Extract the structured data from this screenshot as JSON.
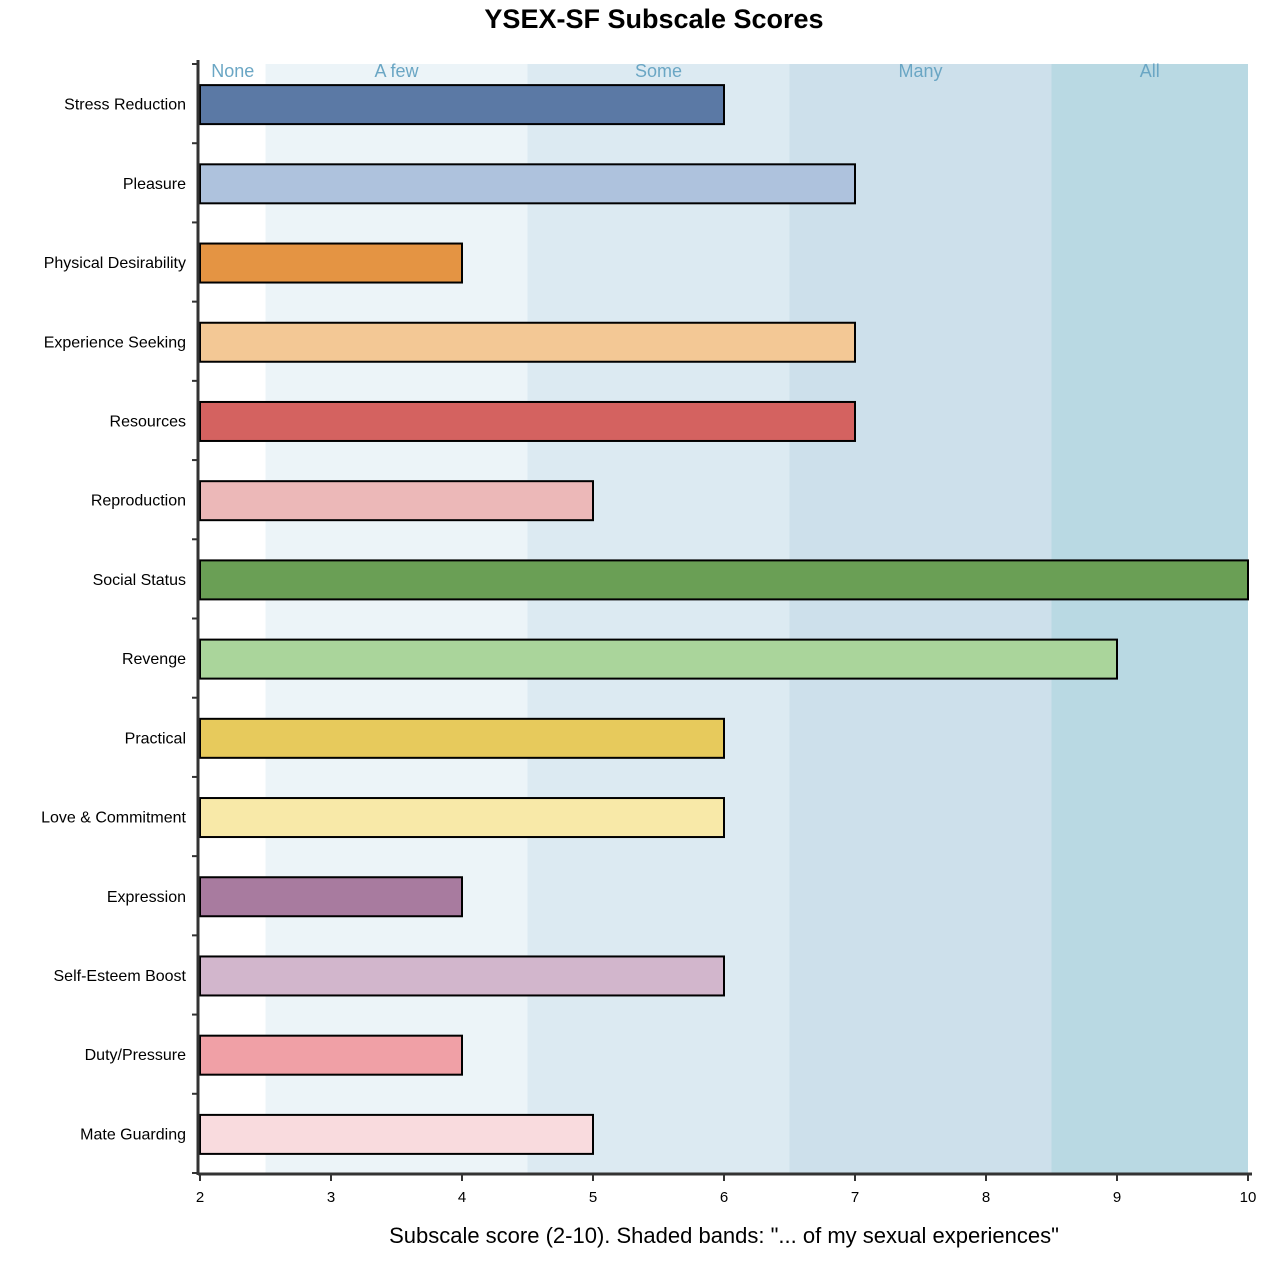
{
  "chart_data": {
    "type": "bar",
    "orientation": "horizontal",
    "title": "YSEX-SF Subscale Scores",
    "xlabel": "Subscale score (2-10). Shaded bands: \"... of my sexual experiences\"",
    "ylabel": "",
    "xlim": [
      2,
      10
    ],
    "xticks": [
      2,
      3,
      4,
      5,
      6,
      7,
      8,
      9,
      10
    ],
    "grid": false,
    "bands": [
      {
        "label": "None",
        "from": 2.0,
        "to": 2.5,
        "color": "#ffffff"
      },
      {
        "label": "A few",
        "from": 2.5,
        "to": 4.5,
        "color": "#ecf4f8"
      },
      {
        "label": "Some",
        "from": 4.5,
        "to": 6.5,
        "color": "#dceaf2"
      },
      {
        "label": "Many",
        "from": 6.5,
        "to": 8.5,
        "color": "#cde0eb"
      },
      {
        "label": "All",
        "from": 8.5,
        "to": 10.0,
        "color": "#b9d9e3"
      }
    ],
    "categories": [
      "Stress Reduction",
      "Pleasure",
      "Physical Desirability",
      "Experience Seeking",
      "Resources",
      "Reproduction",
      "Social Status",
      "Revenge",
      "Practical",
      "Love & Commitment",
      "Expression",
      "Self-Esteem Boost",
      "Duty/Pressure",
      "Mate Guarding"
    ],
    "values": [
      6,
      7,
      4,
      7,
      7,
      5,
      10,
      9,
      6,
      6,
      4,
      6,
      4,
      5
    ],
    "colors": [
      "#5b79a5",
      "#aec2dd",
      "#e49443",
      "#f3c895",
      "#d46260",
      "#ecb8b8",
      "#6a9f55",
      "#aad59b",
      "#e7ca5c",
      "#f8e9a8",
      "#a87b9f",
      "#d2b6cc",
      "#f0a0a6",
      "#f9dbde"
    ]
  }
}
